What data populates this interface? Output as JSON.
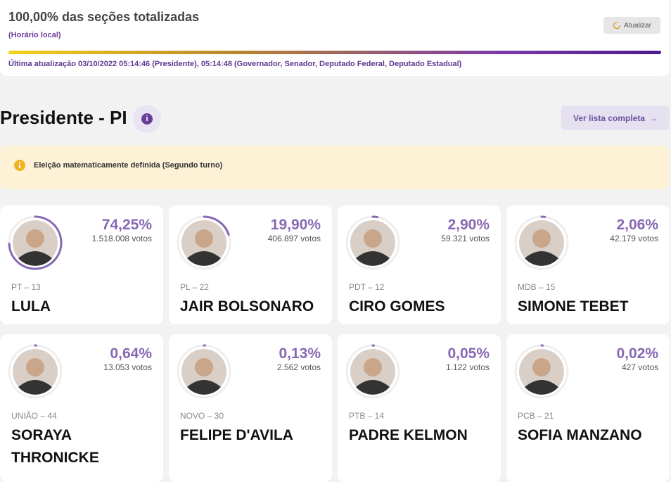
{
  "header": {
    "title": "100,00% das seções totalizadas",
    "subtitle": "(Horário local)",
    "refresh_button": "Atualizar",
    "last_update": "Última atualização 03/10/2022 05:14:46 (Presidente), 05:14:48 (Governador, Senador, Deputado Federal, Deputado Estadual)"
  },
  "section": {
    "title": "Presidente - PI",
    "list_button": "Ver lista completa",
    "notice": "Eleição matematicamente definida (Segundo turno)"
  },
  "candidates": [
    {
      "percent": {
        "value": 74.25,
        "label": "74,25%"
      },
      "votes": "1.518.008 votos",
      "party": "PT – 13",
      "name": "LULA"
    },
    {
      "percent": {
        "value": 19.9,
        "label": "19,90%"
      },
      "votes": "406.897 votos",
      "party": "PL – 22",
      "name": "JAIR BOLSONARO"
    },
    {
      "percent": {
        "value": 2.9,
        "label": "2,90%"
      },
      "votes": "59.321 votos",
      "party": "PDT – 12",
      "name": "CIRO GOMES"
    },
    {
      "percent": {
        "value": 2.06,
        "label": "2,06%"
      },
      "votes": "42.179 votos",
      "party": "MDB – 15",
      "name": "SIMONE TEBET"
    },
    {
      "percent": {
        "value": 0.64,
        "label": "0,64%"
      },
      "votes": "13.053 votos",
      "party": "UNIÃO – 44",
      "name": "SORAYA THRONICKE"
    },
    {
      "percent": {
        "value": 0.13,
        "label": "0,13%"
      },
      "votes": "2.562 votos",
      "party": "NOVO – 30",
      "name": "FELIPE D'AVILA"
    },
    {
      "percent": {
        "value": 0.05,
        "label": "0,05%"
      },
      "votes": "1.122 votos",
      "party": "PTB – 14",
      "name": "PADRE KELMON"
    },
    {
      "percent": {
        "value": 0.02,
        "label": "0,02%"
      },
      "votes": "427 votos",
      "party": "PCB – 21",
      "name": "SOFIA MANZANO"
    }
  ]
}
